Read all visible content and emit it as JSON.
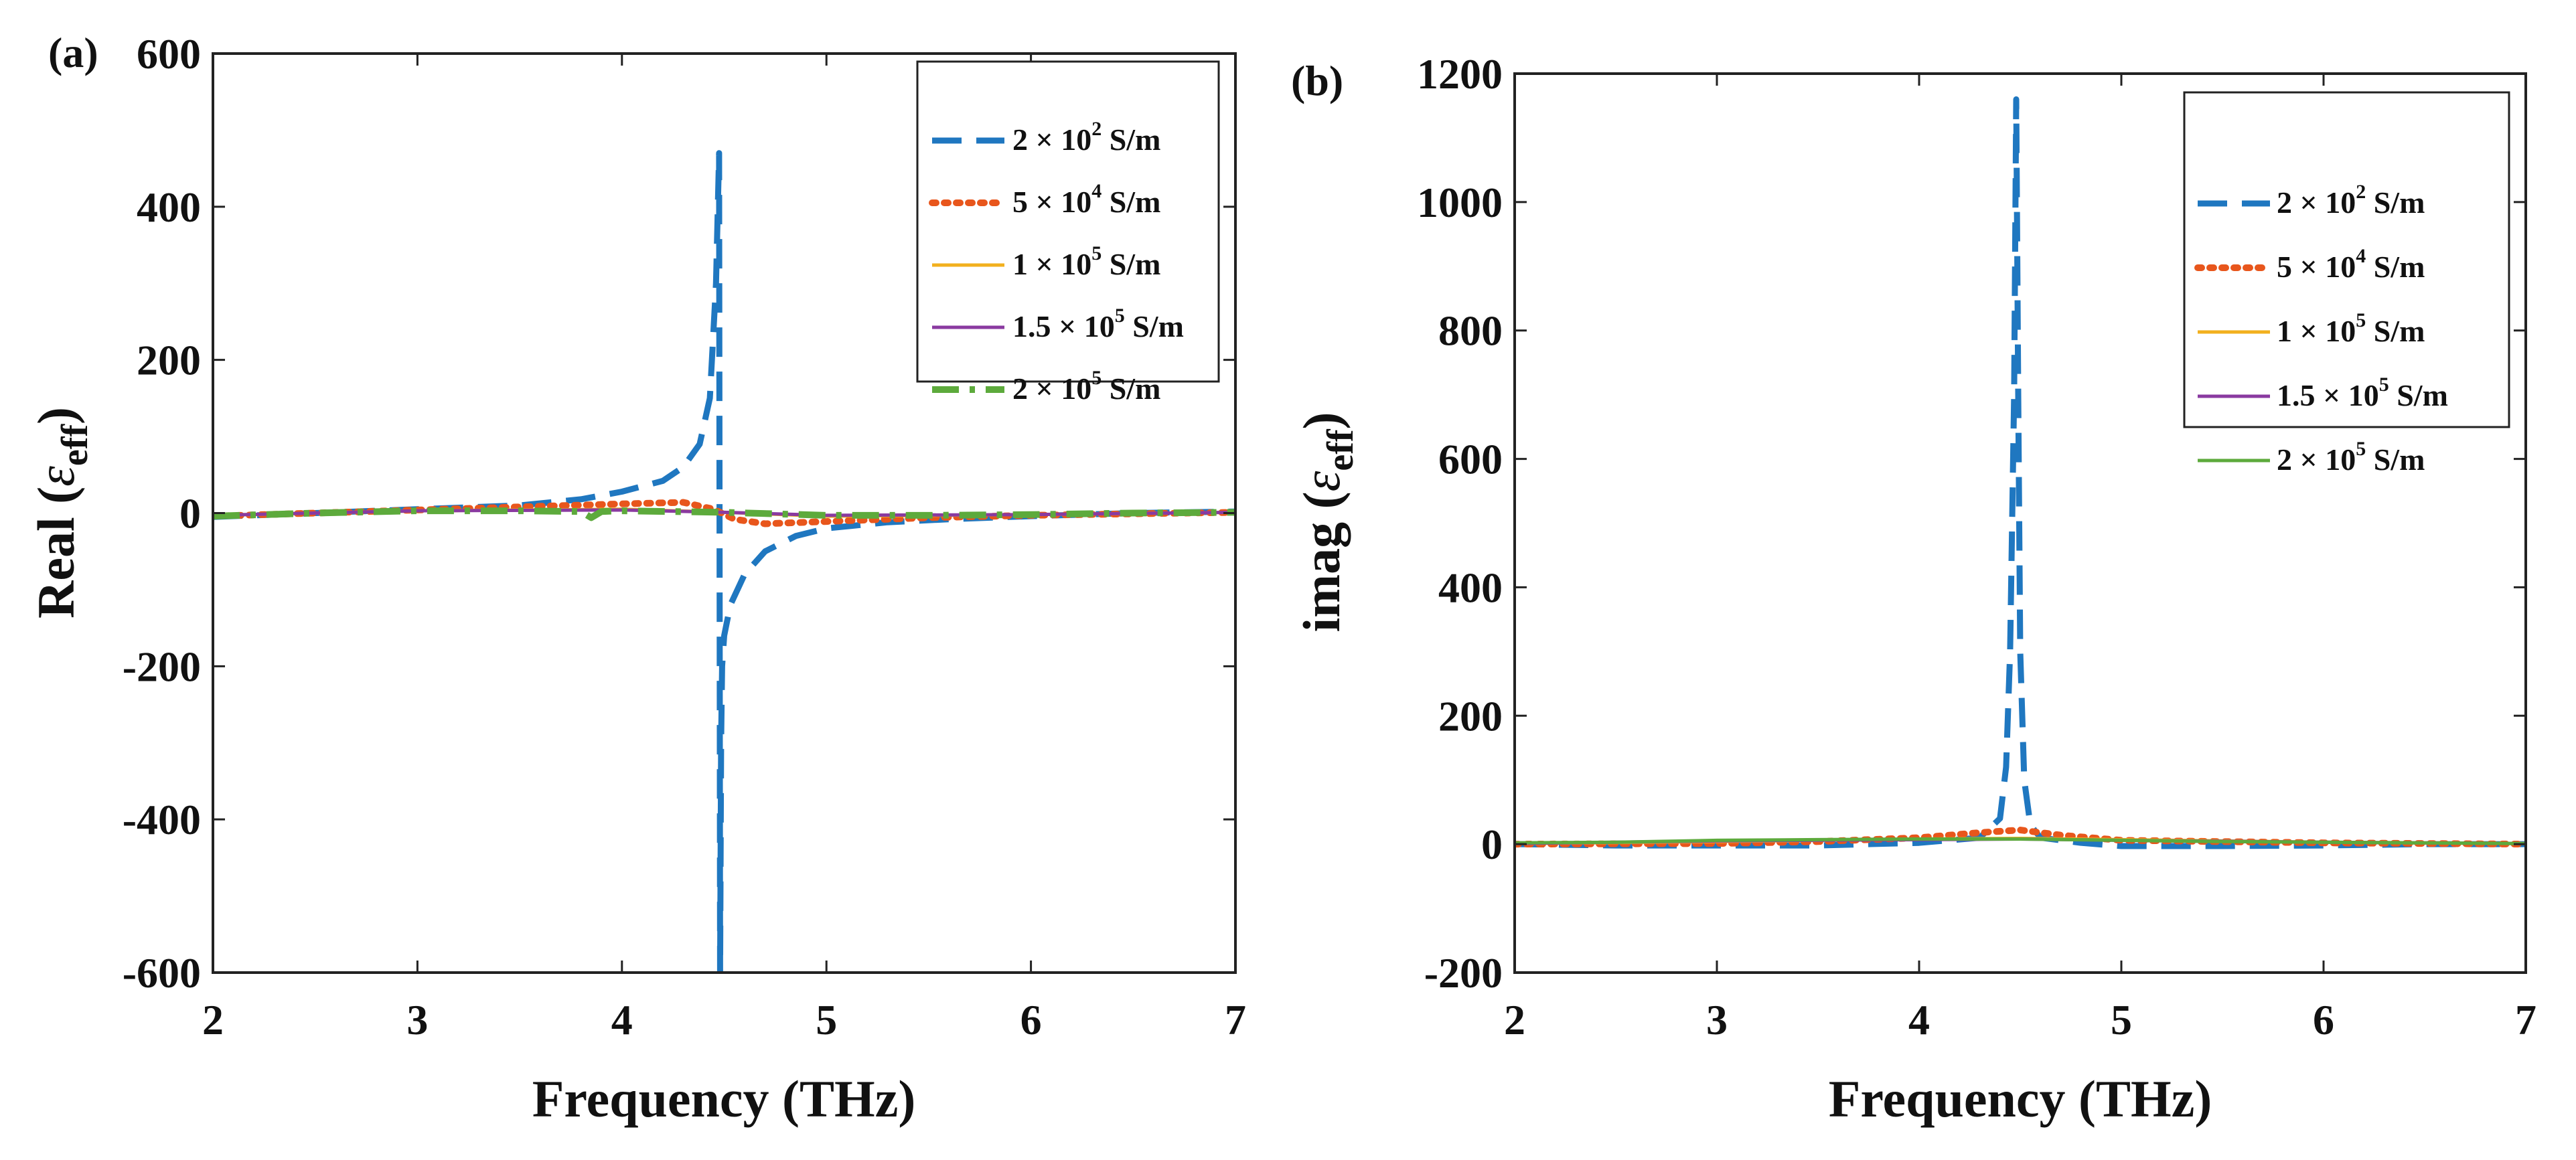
{
  "chart_data": [
    {
      "panel": "(a)",
      "type": "line",
      "xlabel": "Frequency (THz)",
      "ylabel_main": "Real (",
      "ylabel_sym": "ε",
      "ylabel_sub": "eff",
      "ylabel_close": ")",
      "xlim": [
        2,
        7
      ],
      "ylim": [
        -600,
        600
      ],
      "xticks": [
        2,
        3,
        4,
        5,
        6,
        7
      ],
      "yticks": [
        -600,
        -400,
        -200,
        0,
        200,
        400,
        600
      ],
      "legend_position": "top-right",
      "series": [
        {
          "name": "2 × 10² S/m",
          "label_base": "2 × 10",
          "label_exp": "2",
          "label_unit": " S/m",
          "color": "#1f77c0",
          "style": "dashed",
          "x": [
            2.0,
            2.5,
            3.0,
            3.5,
            3.8,
            4.0,
            4.2,
            4.3,
            4.38,
            4.43,
            4.46,
            4.475,
            4.48,
            4.485,
            4.49,
            4.5,
            4.53,
            4.6,
            4.7,
            4.85,
            5.0,
            5.3,
            5.6,
            6.0,
            6.5,
            7.0
          ],
          "y": [
            -5,
            0,
            5,
            10,
            18,
            28,
            42,
            60,
            90,
            150,
            300,
            470,
            -600,
            -300,
            -200,
            -160,
            -120,
            -80,
            -50,
            -30,
            -20,
            -12,
            -8,
            -4,
            0,
            2
          ]
        },
        {
          "name": "5 × 10⁴ S/m",
          "label_base": "5 × 10",
          "label_exp": "4",
          "label_unit": " S/m",
          "color": "#e8561c",
          "style": "dotted",
          "x": [
            2.0,
            2.5,
            3.0,
            3.5,
            4.0,
            4.3,
            4.45,
            4.55,
            4.7,
            5.0,
            5.5,
            6.0,
            6.5,
            7.0
          ],
          "y": [
            -4,
            0,
            4,
            8,
            12,
            14,
            5,
            -8,
            -14,
            -11,
            -6,
            -3,
            -1,
            1
          ]
        },
        {
          "name": "1 × 10⁵ S/m",
          "label_base": "1 × 10",
          "label_exp": "5",
          "label_unit": " S/m",
          "color": "#f2b01e",
          "style": "solid",
          "x": [
            2.0,
            3.0,
            4.0,
            4.5,
            5.0,
            6.0,
            7.0
          ],
          "y": [
            -3,
            3,
            5,
            1,
            -4,
            -2,
            1
          ]
        },
        {
          "name": "1.5 × 10⁵ S/m",
          "label_base": "1.5 × 10",
          "label_exp": "5",
          "label_unit": " S/m",
          "color": "#8a3aa0",
          "style": "solid",
          "x": [
            2.0,
            3.0,
            4.0,
            4.5,
            5.0,
            6.0,
            7.0
          ],
          "y": [
            -3,
            3,
            4,
            1,
            -3,
            -2,
            1
          ]
        },
        {
          "name": "2 × 10⁵ S/m",
          "label_base": "2 × 10",
          "label_exp": "5",
          "label_unit": " S/m",
          "color": "#5daa3c",
          "style": "dashdot",
          "x": [
            2.0,
            2.5,
            3.0,
            3.5,
            3.8,
            3.85,
            3.9,
            4.0,
            4.5,
            5.0,
            5.5,
            6.0,
            6.5,
            7.0
          ],
          "y": [
            -4,
            0,
            3,
            3,
            2,
            -6,
            2,
            3,
            1,
            -3,
            -3,
            -2,
            0,
            1
          ]
        }
      ]
    },
    {
      "panel": "(b)",
      "type": "line",
      "xlabel": "Frequency (THz)",
      "ylabel_main": "imag (",
      "ylabel_sym": "ε",
      "ylabel_sub": "eff",
      "ylabel_close": ")",
      "xlim": [
        2,
        7
      ],
      "ylim": [
        -200,
        1200
      ],
      "xticks": [
        2,
        3,
        4,
        5,
        6,
        7
      ],
      "yticks": [
        -200,
        0,
        200,
        400,
        600,
        800,
        1000,
        1200
      ],
      "legend_position": "top-right",
      "series": [
        {
          "name": "2 × 10² S/m",
          "label_base": "2 × 10",
          "label_exp": "2",
          "label_unit": " S/m",
          "color": "#1f77c0",
          "style": "dashed",
          "x": [
            2.0,
            2.5,
            3.0,
            3.5,
            4.0,
            4.3,
            4.4,
            4.43,
            4.45,
            4.47,
            4.48,
            4.49,
            4.5,
            4.52,
            4.55,
            4.6,
            4.8,
            5.0,
            5.5,
            6.0,
            6.5,
            7.0
          ],
          "y": [
            0,
            -2,
            -2,
            -2,
            2,
            10,
            40,
            120,
            300,
            700,
            1160,
            700,
            300,
            100,
            30,
            10,
            2,
            -3,
            -3,
            -2,
            0,
            0
          ],
          "crop_above_ylim": true
        },
        {
          "name": "5 × 10⁴ S/m",
          "label_base": "5 × 10",
          "label_exp": "4",
          "label_unit": " S/m",
          "color": "#e8561c",
          "style": "dotted",
          "x": [
            2.0,
            3.0,
            3.5,
            4.0,
            4.3,
            4.5,
            4.7,
            5.0,
            6.0,
            7.0
          ],
          "y": [
            0,
            1,
            4,
            10,
            18,
            22,
            14,
            6,
            2,
            0
          ]
        },
        {
          "name": "1 × 10⁵ S/m",
          "label_base": "1 × 10",
          "label_exp": "5",
          "label_unit": " S/m",
          "color": "#f2b01e",
          "style": "solid",
          "x": [
            2.0,
            3.0,
            4.0,
            4.5,
            5.0,
            6.0,
            7.0
          ],
          "y": [
            1,
            4,
            8,
            9,
            7,
            3,
            1
          ]
        },
        {
          "name": "1.5 × 10⁵ S/m",
          "label_base": "1.5 × 10",
          "label_exp": "5",
          "label_unit": " S/m",
          "color": "#8a3aa0",
          "style": "solid",
          "x": [
            2.0,
            3.0,
            4.0,
            4.5,
            5.0,
            6.0,
            7.0
          ],
          "y": [
            1,
            5,
            7,
            8,
            6,
            3,
            1
          ]
        },
        {
          "name": "2 × 10⁵ S/m",
          "label_base": "2 × 10",
          "label_exp": "5",
          "label_unit": " S/m",
          "color": "#5daa3c",
          "style": "solid",
          "x": [
            2.0,
            2.5,
            3.0,
            3.5,
            4.0,
            4.5,
            5.0,
            5.5,
            6.0,
            6.5,
            7.0
          ],
          "y": [
            2,
            3,
            6,
            7,
            8,
            8,
            6,
            4,
            3,
            2,
            1
          ]
        }
      ]
    }
  ]
}
